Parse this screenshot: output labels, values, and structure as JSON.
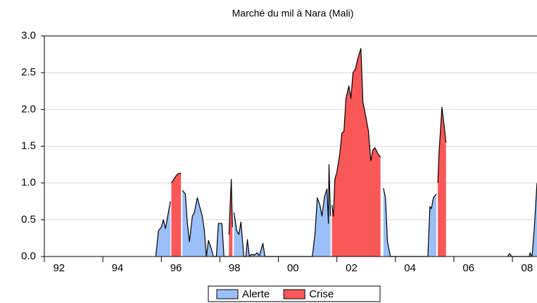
{
  "chart_data": {
    "type": "area",
    "title": "Marché du mil à Nara (Mali)",
    "x": [
      1995.81,
      1995.9,
      1996.0,
      1996.07,
      1996.14,
      1996.24,
      1996.31,
      1996.34,
      1996.51,
      1996.58,
      1996.67,
      1996.72,
      1996.82,
      1996.89,
      1996.96,
      1997.06,
      1997.13,
      1997.23,
      1997.33,
      1997.4,
      1997.47,
      1997.54,
      1997.61,
      1997.71,
      1997.78,
      1997.88,
      1997.95,
      1998.07,
      1998.14,
      1998.29,
      1998.31,
      1998.39,
      1998.43,
      1998.48,
      1998.58,
      1998.65,
      1998.72,
      1998.82,
      1998.89,
      1998.94,
      1999.01,
      1999.08,
      1999.18,
      1999.28,
      1999.35,
      1999.47,
      1999.54,
      2001.16,
      2001.25,
      2001.33,
      2001.42,
      2001.49,
      2001.57,
      2001.66,
      2001.71,
      2001.73,
      2001.78,
      2001.83,
      2001.88,
      2001.93,
      2002.0,
      2002.1,
      2002.17,
      2002.24,
      2002.31,
      2002.41,
      2002.48,
      2002.55,
      2002.63,
      2002.72,
      2002.82,
      2002.89,
      2002.99,
      2003.08,
      2003.16,
      2003.23,
      2003.3,
      2003.4,
      2003.49,
      2003.59,
      2003.66,
      2003.73,
      2003.83,
      2005.11,
      2005.18,
      2005.23,
      2005.3,
      2005.4,
      2005.45,
      2005.49,
      2005.59,
      2005.66,
      2005.73,
      2007.83,
      2007.9,
      2007.98,
      2008.58,
      2008.6,
      2008.67,
      2008.75,
      2008.84
    ],
    "series": [
      {
        "name": "Alerte",
        "color": "#9bbff8",
        "values": [
          0,
          0.35,
          0.4,
          0.5,
          0.38,
          0.6,
          0.75,
          null,
          null,
          null,
          null,
          0.9,
          0.85,
          0.45,
          0.2,
          0.55,
          0.6,
          0.8,
          0.65,
          0.55,
          0.35,
          0,
          0.22,
          0.1,
          0,
          0,
          0.45,
          0.45,
          0,
          0,
          null,
          null,
          null,
          0.6,
          0.35,
          0.3,
          0.47,
          0,
          0,
          0.23,
          0,
          0.03,
          0.02,
          0.05,
          0.01,
          0.18,
          0,
          0,
          0.3,
          0.8,
          0.7,
          0.55,
          0.8,
          0.92,
          0.45,
          1.25,
          0.55,
          null,
          null,
          null,
          null,
          null,
          null,
          null,
          null,
          null,
          null,
          null,
          null,
          null,
          null,
          null,
          null,
          null,
          null,
          null,
          null,
          null,
          null,
          0.93,
          0.8,
          0.2,
          0,
          0,
          0.68,
          0.65,
          0.8,
          0.85,
          null,
          null,
          null,
          null,
          null,
          0,
          0.04,
          0,
          0,
          0.05,
          0,
          0.4,
          1.0
        ]
      },
      {
        "name": "Crise",
        "color": "#fa5858",
        "values": [
          null,
          null,
          null,
          null,
          null,
          null,
          null,
          1.0,
          1.1,
          1.13,
          1.13,
          null,
          null,
          null,
          null,
          null,
          null,
          null,
          null,
          null,
          null,
          null,
          null,
          null,
          null,
          null,
          null,
          null,
          null,
          null,
          0.3,
          1.05,
          0.4,
          null,
          null,
          null,
          null,
          null,
          null,
          null,
          null,
          null,
          null,
          null,
          null,
          null,
          null,
          null,
          null,
          null,
          null,
          null,
          null,
          null,
          null,
          null,
          null,
          0.7,
          0.55,
          1.05,
          1.15,
          1.4,
          1.68,
          1.7,
          2.15,
          2.32,
          2.15,
          2.5,
          2.55,
          2.7,
          2.83,
          2.1,
          1.9,
          1.7,
          1.3,
          1.45,
          1.48,
          1.4,
          1.35,
          null,
          null,
          null,
          null,
          null,
          null,
          null,
          null,
          null,
          1.0,
          1.4,
          2.03,
          1.8,
          1.55,
          null,
          null,
          null,
          null,
          null,
          null,
          null,
          null
        ]
      }
    ],
    "xlim": [
      1992,
      2008.84
    ],
    "xticks": [
      {
        "value": 1992,
        "label": "92"
      },
      {
        "value": 1994,
        "label": "94"
      },
      {
        "value": 1996,
        "label": "96"
      },
      {
        "value": 1998,
        "label": "98"
      },
      {
        "value": 2000,
        "label": "00"
      },
      {
        "value": 2002,
        "label": "02"
      },
      {
        "value": 2004,
        "label": "04"
      },
      {
        "value": 2006,
        "label": "06"
      },
      {
        "value": 2008,
        "label": "08"
      }
    ],
    "ylim": [
      0,
      3
    ],
    "yticks": [
      {
        "value": 0,
        "label": "0.0"
      },
      0.5,
      {
        "value": 1,
        "label": "1.0"
      },
      1.5,
      {
        "value": 2,
        "label": "2.0"
      },
      2.5,
      {
        "value": 3,
        "label": "3.0"
      }
    ],
    "grid": true,
    "legend": "bottom"
  }
}
